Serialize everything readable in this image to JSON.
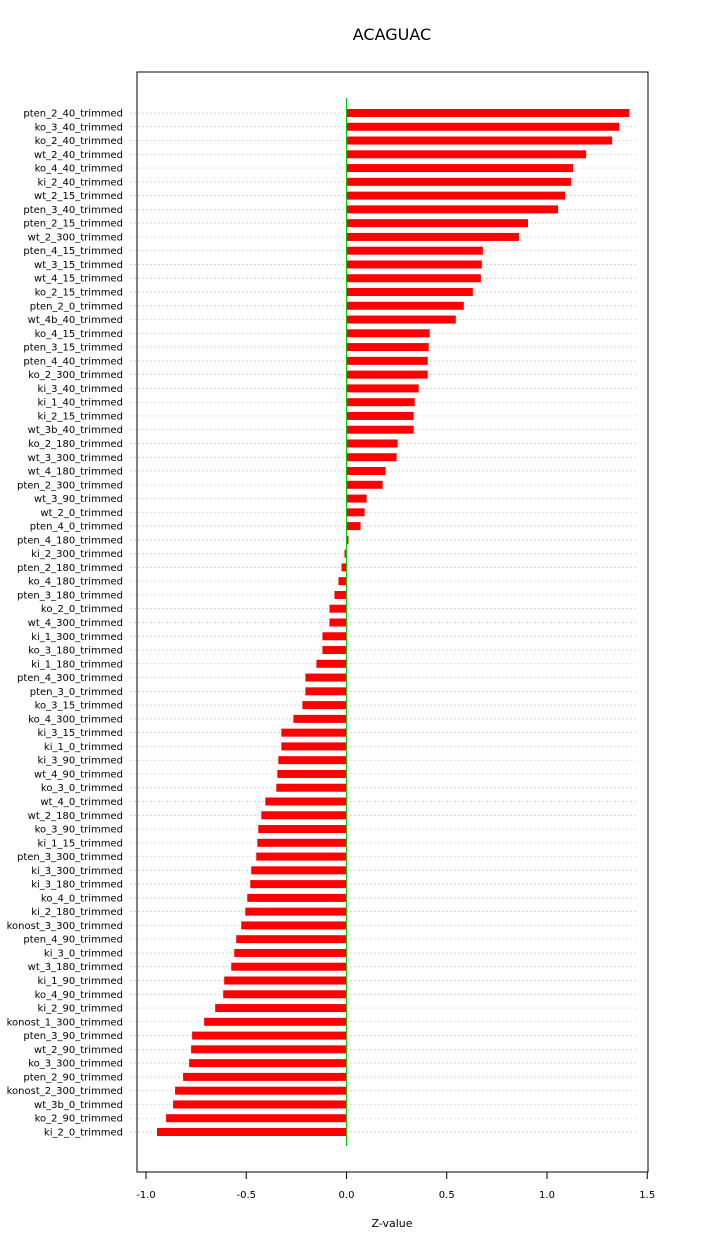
{
  "chart_data": {
    "type": "bar",
    "orientation": "horizontal",
    "title": "ACAGUAC",
    "xlabel": "Z-value",
    "ylabel": "",
    "xlim": [
      -1.0,
      1.5
    ],
    "x_ticks": [
      -1.0,
      -0.5,
      0.0,
      0.5,
      1.0,
      1.5
    ],
    "x_tick_labels": [
      "-1.0",
      "-0.5",
      "0.0",
      "0.5",
      "1.0",
      "1.5"
    ],
    "grid": "horizontal dotted lines at each category",
    "bar_color": "#ff0000",
    "zero_line_color": "#00cc00",
    "categories": [
      "pten_2_40_trimmed",
      "ko_3_40_trimmed",
      "ko_2_40_trimmed",
      "wt_2_40_trimmed",
      "ko_4_40_trimmed",
      "ki_2_40_trimmed",
      "wt_2_15_trimmed",
      "pten_3_40_trimmed",
      "pten_2_15_trimmed",
      "wt_2_300_trimmed",
      "pten_4_15_trimmed",
      "wt_3_15_trimmed",
      "wt_4_15_trimmed",
      "ko_2_15_trimmed",
      "pten_2_0_trimmed",
      "wt_4b_40_trimmed",
      "ko_4_15_trimmed",
      "pten_3_15_trimmed",
      "pten_4_40_trimmed",
      "ko_2_300_trimmed",
      "ki_3_40_trimmed",
      "ki_1_40_trimmed",
      "ki_2_15_trimmed",
      "wt_3b_40_trimmed",
      "ko_2_180_trimmed",
      "wt_3_300_trimmed",
      "wt_4_180_trimmed",
      "pten_2_300_trimmed",
      "wt_3_90_trimmed",
      "wt_2_0_trimmed",
      "pten_4_0_trimmed",
      "pten_4_180_trimmed",
      "ki_2_300_trimmed",
      "pten_2_180_trimmed",
      "ko_4_180_trimmed",
      "pten_3_180_trimmed",
      "ko_2_0_trimmed",
      "wt_4_300_trimmed",
      "ki_1_300_trimmed",
      "ko_3_180_trimmed",
      "ki_1_180_trimmed",
      "pten_4_300_trimmed",
      "pten_3_0_trimmed",
      "ko_3_15_trimmed",
      "ko_4_300_trimmed",
      "ki_3_15_trimmed",
      "ki_1_0_trimmed",
      "ki_3_90_trimmed",
      "wt_4_90_trimmed",
      "ko_3_0_trimmed",
      "wt_4_0_trimmed",
      "wt_2_180_trimmed",
      "ko_3_90_trimmed",
      "ki_1_15_trimmed",
      "pten_3_300_trimmed",
      "ki_3_300_trimmed",
      "ki_3_180_trimmed",
      "ko_4_0_trimmed",
      "ki_2_180_trimmed",
      "konost_3_300_trimmed",
      "pten_4_90_trimmed",
      "ki_3_0_trimmed",
      "wt_3_180_trimmed",
      "ki_1_90_trimmed",
      "ko_4_90_trimmed",
      "ki_2_90_trimmed",
      "konost_1_300_trimmed",
      "pten_3_90_trimmed",
      "wt_2_90_trimmed",
      "ko_3_300_trimmed",
      "pten_2_90_trimmed",
      "konost_2_300_trimmed",
      "wt_3b_0_trimmed",
      "ko_2_90_trimmed",
      "ki_2_0_trimmed"
    ],
    "values": [
      1.41,
      1.36,
      1.325,
      1.195,
      1.13,
      1.12,
      1.09,
      1.055,
      0.905,
      0.86,
      0.68,
      0.675,
      0.67,
      0.63,
      0.585,
      0.545,
      0.415,
      0.41,
      0.405,
      0.405,
      0.36,
      0.34,
      0.335,
      0.335,
      0.255,
      0.25,
      0.195,
      0.18,
      0.1,
      0.09,
      0.07,
      0.01,
      -0.01,
      -0.025,
      -0.04,
      -0.06,
      -0.085,
      -0.085,
      -0.12,
      -0.12,
      -0.15,
      -0.205,
      -0.205,
      -0.22,
      -0.265,
      -0.325,
      -0.325,
      -0.34,
      -0.345,
      -0.35,
      -0.405,
      -0.425,
      -0.44,
      -0.445,
      -0.45,
      -0.475,
      -0.48,
      -0.495,
      -0.505,
      -0.525,
      -0.55,
      -0.56,
      -0.575,
      -0.61,
      -0.615,
      -0.655,
      -0.71,
      -0.77,
      -0.775,
      -0.785,
      -0.815,
      -0.855,
      -0.865,
      -0.9,
      -0.945
    ]
  }
}
